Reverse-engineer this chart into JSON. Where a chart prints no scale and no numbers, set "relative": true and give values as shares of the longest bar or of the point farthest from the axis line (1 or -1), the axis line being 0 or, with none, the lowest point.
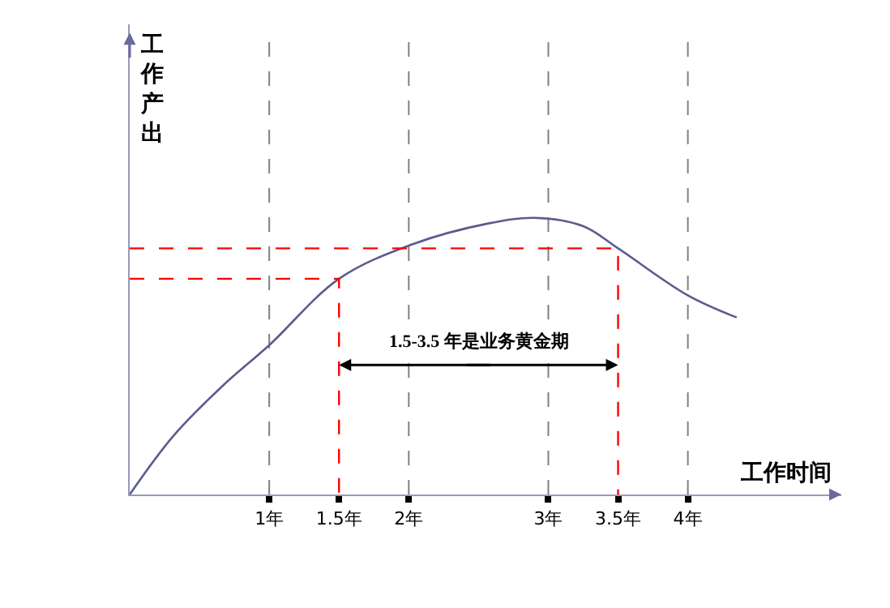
{
  "chart_data": {
    "type": "line",
    "relative": true,
    "xlabel": "工作时间",
    "ylabel": "工作产出",
    "xlim": [
      0,
      5.1
    ],
    "xticks": [
      {
        "value": 1,
        "label": "1年"
      },
      {
        "value": 1.5,
        "label": "1.5年"
      },
      {
        "value": 2,
        "label": "2年"
      },
      {
        "value": 3,
        "label": "3年"
      },
      {
        "value": 3.5,
        "label": "3.5年"
      },
      {
        "value": 4,
        "label": "4年"
      }
    ],
    "series": [
      {
        "color": "#5b5b8f",
        "line_style": "solid",
        "x": [
          0,
          0.31,
          0.66,
          1,
          1.5,
          2,
          2.57,
          2.9,
          3.25,
          3.5,
          4,
          4.35
        ],
        "values": [
          0,
          0.21,
          0.39,
          0.54,
          0.78,
          0.9,
          0.98,
          1,
          0.97,
          0.89,
          0.72,
          0.64
        ]
      },
      {
        "color": "#ff0000",
        "line_style": "dashed",
        "x": [
          0,
          1.5,
          1.5
        ],
        "values": [
          0.78,
          0.78,
          0
        ]
      },
      {
        "color": "#ff0000",
        "line_style": "dashed",
        "x": [
          0,
          3.5,
          3.5
        ],
        "values": [
          0.89,
          0.89,
          0
        ]
      }
    ],
    "ref_lines": [
      {
        "axis": "x",
        "value": 1,
        "color": "#808080",
        "line_style": "dashed"
      },
      {
        "axis": "x",
        "value": 2,
        "color": "#808080",
        "line_style": "dashed"
      },
      {
        "axis": "x",
        "value": 3,
        "color": "#808080",
        "line_style": "dashed"
      },
      {
        "axis": "x",
        "value": 4,
        "color": "#808080",
        "line_style": "dashed"
      }
    ],
    "annotations": [
      "1.5-3.5 年是业务黄金期"
    ],
    "marker": "none",
    "grid": false
  }
}
